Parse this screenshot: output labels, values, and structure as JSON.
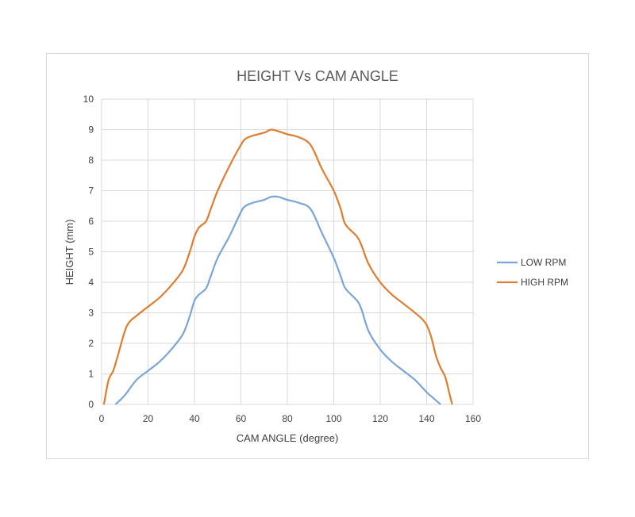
{
  "chart_data": {
    "type": "line",
    "title": "HEIGHT Vs CAM ANGLE",
    "xlabel": "CAM ANGLE (degree)",
    "ylabel": "HEIGHT (mm)",
    "xlim": [
      0,
      160
    ],
    "ylim": [
      0,
      10
    ],
    "x_ticks": [
      0,
      20,
      40,
      60,
      80,
      100,
      120,
      140,
      160
    ],
    "y_ticks": [
      0,
      1,
      2,
      3,
      4,
      5,
      6,
      7,
      8,
      9,
      10
    ],
    "grid": true,
    "legend_position": "right",
    "series": [
      {
        "name": "LOW RPM",
        "color": "#7aa5d8",
        "x": [
          6,
          10,
          15,
          20,
          25,
          30,
          35,
          38,
          40,
          42,
          45,
          47,
          50,
          55,
          60,
          62,
          65,
          70,
          73,
          76,
          80,
          85,
          90,
          95,
          100,
          103,
          105,
          110,
          112,
          115,
          120,
          125,
          130,
          135,
          140,
          143,
          146
        ],
        "y": [
          0,
          0.3,
          0.8,
          1.1,
          1.4,
          1.8,
          2.3,
          2.9,
          3.4,
          3.6,
          3.8,
          4.2,
          4.8,
          5.5,
          6.3,
          6.5,
          6.6,
          6.7,
          6.8,
          6.8,
          6.7,
          6.6,
          6.4,
          5.6,
          4.8,
          4.2,
          3.8,
          3.4,
          3.1,
          2.4,
          1.8,
          1.4,
          1.1,
          0.8,
          0.4,
          0.2,
          0
        ]
      },
      {
        "name": "HIGH RPM",
        "color": "#e07c2e",
        "x": [
          1,
          3,
          5,
          7,
          10,
          12,
          15,
          20,
          25,
          30,
          35,
          38,
          40,
          42,
          45,
          47,
          50,
          55,
          60,
          62,
          65,
          70,
          73,
          76,
          80,
          85,
          90,
          95,
          100,
          103,
          105,
          110,
          112,
          115,
          120,
          125,
          130,
          135,
          138,
          140,
          142,
          144,
          146,
          148,
          150,
          151
        ],
        "y": [
          0,
          0.8,
          1.1,
          1.6,
          2.4,
          2.7,
          2.9,
          3.2,
          3.5,
          3.9,
          4.4,
          5.0,
          5.5,
          5.8,
          6.0,
          6.4,
          7.0,
          7.8,
          8.5,
          8.7,
          8.8,
          8.9,
          9.0,
          8.95,
          8.85,
          8.75,
          8.5,
          7.7,
          7.0,
          6.4,
          5.9,
          5.5,
          5.2,
          4.6,
          4.0,
          3.6,
          3.3,
          3.0,
          2.8,
          2.6,
          2.2,
          1.6,
          1.2,
          0.9,
          0.3,
          0
        ]
      }
    ]
  }
}
